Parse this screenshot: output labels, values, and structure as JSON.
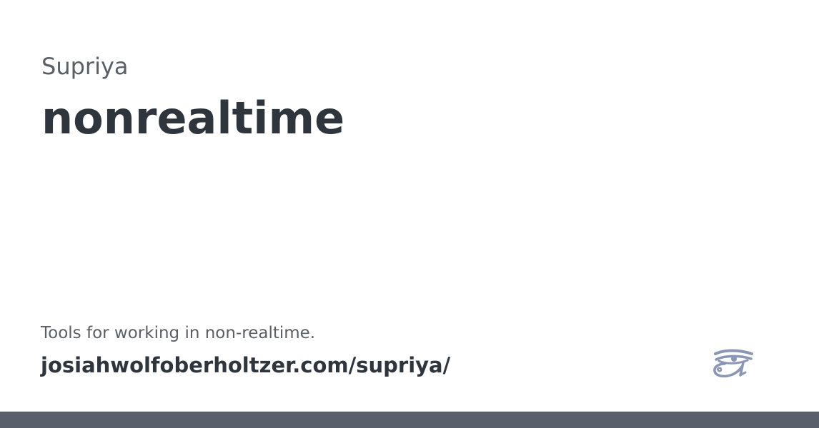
{
  "project": {
    "name": "Supriya"
  },
  "page": {
    "title": "nonrealtime",
    "description": "Tools for working in non-realtime.",
    "site_url": "josiahwolfoberholtzer.com/supriya/"
  },
  "logo": {
    "icon": "eye-of-horus-icon",
    "color": "#8a96b3"
  },
  "colors": {
    "background": "#ffffff",
    "title_text": "#2e353d",
    "secondary_text": "#5a5f66",
    "footer_bar": "#5a606b"
  }
}
